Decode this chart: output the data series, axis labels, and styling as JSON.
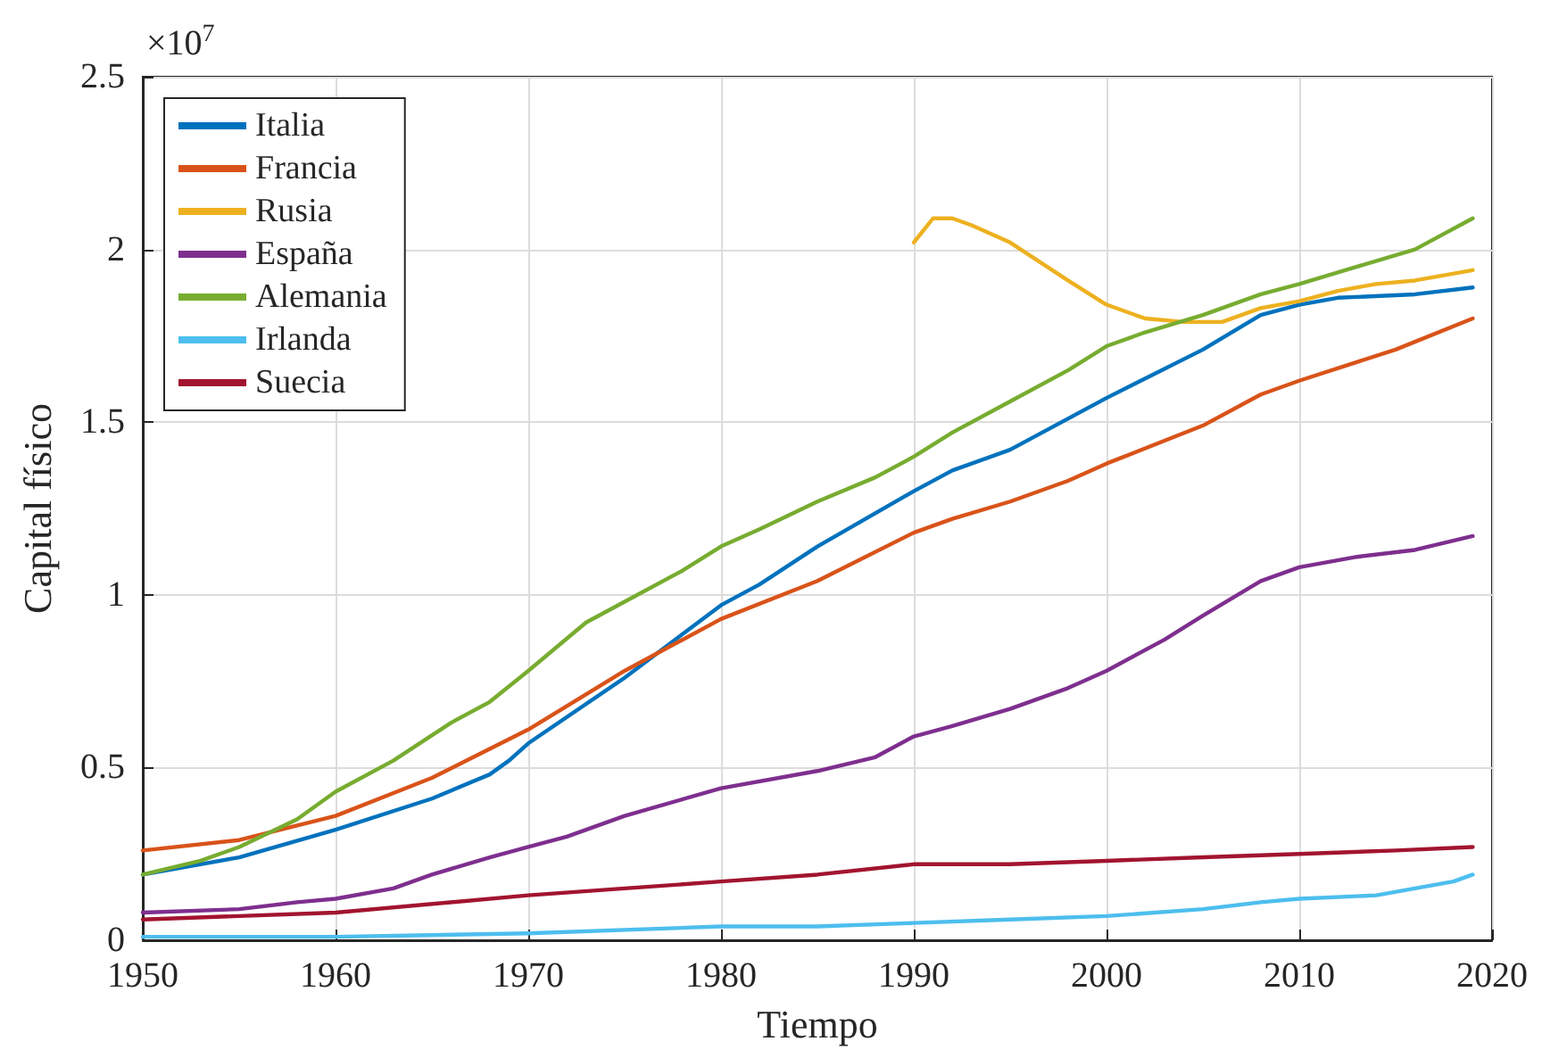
{
  "chart_data": {
    "type": "line",
    "xlabel": "Tiempo",
    "ylabel": "Capital físico",
    "annotations": [
      "×10$^{7}$"
    ],
    "xlim": [
      1950,
      2020
    ],
    "xticks": [
      1950,
      1960,
      1970,
      1980,
      1990,
      2000,
      2010,
      2020
    ],
    "ylim": [
      0,
      2.5
    ],
    "yticks": [
      0,
      0.5,
      1,
      1.5,
      2,
      2.5
    ],
    "grid": true,
    "legend": "top left",
    "marker": "none",
    "line_style": "solid",
    "series": [
      {
        "name": "Italia",
        "color": "#0072bd",
        "x": [
          1950,
          1955,
          1960,
          1965,
          1968,
          1969,
          1970,
          1975,
          1980,
          1982,
          1985,
          1990,
          1992,
          1995,
          2000,
          2005,
          2008,
          2010,
          2012,
          2016,
          2019
        ],
        "values": [
          0.19,
          0.24,
          0.32,
          0.41,
          0.48,
          0.52,
          0.57,
          0.76,
          0.97,
          1.03,
          1.14,
          1.3,
          1.36,
          1.42,
          1.57,
          1.71,
          1.81,
          1.84,
          1.86,
          1.87,
          1.89
        ]
      },
      {
        "name": "Francia",
        "color": "#d95319",
        "x": [
          1950,
          1955,
          1960,
          1965,
          1970,
          1975,
          1980,
          1985,
          1990,
          1992,
          1995,
          1998,
          2000,
          2005,
          2008,
          2010,
          2015,
          2019
        ],
        "values": [
          0.26,
          0.29,
          0.36,
          0.47,
          0.61,
          0.78,
          0.93,
          1.04,
          1.18,
          1.22,
          1.27,
          1.33,
          1.38,
          1.49,
          1.58,
          1.62,
          1.71,
          1.8
        ]
      },
      {
        "name": "Rusia",
        "color": "#edb120",
        "x": [
          1990,
          1991,
          1992,
          1993,
          1995,
          1998,
          2000,
          2002,
          2004,
          2006,
          2008,
          2010,
          2012,
          2014,
          2016,
          2019
        ],
        "values": [
          2.02,
          2.09,
          2.09,
          2.07,
          2.02,
          1.91,
          1.84,
          1.8,
          1.79,
          1.79,
          1.83,
          1.85,
          1.88,
          1.9,
          1.91,
          1.94
        ]
      },
      {
        "name": "España",
        "color": "#7e2f8e",
        "x": [
          1950,
          1955,
          1958,
          1960,
          1963,
          1965,
          1968,
          1970,
          1972,
          1975,
          1980,
          1985,
          1988,
          1990,
          1992,
          1995,
          1998,
          2000,
          2003,
          2005,
          2008,
          2010,
          2013,
          2016,
          2019
        ],
        "values": [
          0.08,
          0.09,
          0.11,
          0.12,
          0.15,
          0.19,
          0.24,
          0.27,
          0.3,
          0.36,
          0.44,
          0.49,
          0.53,
          0.59,
          0.62,
          0.67,
          0.73,
          0.78,
          0.87,
          0.94,
          1.04,
          1.08,
          1.11,
          1.13,
          1.17
        ]
      },
      {
        "name": "Alemania",
        "color": "#77ac30",
        "x": [
          1950,
          1953,
          1955,
          1958,
          1960,
          1963,
          1966,
          1968,
          1970,
          1973,
          1975,
          1978,
          1980,
          1982,
          1985,
          1988,
          1990,
          1992,
          1995,
          1998,
          2000,
          2002,
          2005,
          2008,
          2010,
          2013,
          2016,
          2019
        ],
        "values": [
          0.19,
          0.23,
          0.27,
          0.35,
          0.43,
          0.52,
          0.63,
          0.69,
          0.78,
          0.92,
          0.98,
          1.07,
          1.14,
          1.19,
          1.27,
          1.34,
          1.4,
          1.47,
          1.56,
          1.65,
          1.72,
          1.76,
          1.81,
          1.87,
          1.9,
          1.95,
          2.0,
          2.09
        ]
      },
      {
        "name": "Irlanda",
        "color": "#4dbeee",
        "x": [
          1950,
          1960,
          1970,
          1980,
          1985,
          1990,
          1995,
          2000,
          2005,
          2008,
          2010,
          2014,
          2016,
          2018,
          2019
        ],
        "values": [
          0.01,
          0.01,
          0.02,
          0.04,
          0.04,
          0.05,
          0.06,
          0.07,
          0.09,
          0.11,
          0.12,
          0.13,
          0.15,
          0.17,
          0.19
        ]
      },
      {
        "name": "Suecia",
        "color": "#a2142f",
        "x": [
          1950,
          1960,
          1970,
          1975,
          1980,
          1985,
          1990,
          1995,
          2000,
          2005,
          2010,
          2015,
          2019
        ],
        "values": [
          0.06,
          0.08,
          0.13,
          0.15,
          0.17,
          0.19,
          0.22,
          0.22,
          0.23,
          0.24,
          0.25,
          0.26,
          0.27
        ]
      }
    ]
  }
}
